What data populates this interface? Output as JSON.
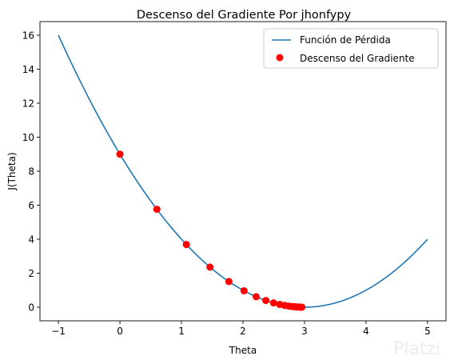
{
  "chart_data": {
    "type": "scatter",
    "title": "Descenso del Gradiente Por jhonfypy",
    "xlabel": "Theta",
    "ylabel": "J(Theta)",
    "xlim": [
      -1.3,
      5.3
    ],
    "ylim": [
      -0.8,
      16.8
    ],
    "xticks": [
      -1,
      0,
      1,
      2,
      3,
      4,
      5
    ],
    "yticks": [
      0,
      2,
      4,
      6,
      8,
      10,
      12,
      14,
      16
    ],
    "xtick_labels": [
      "−1",
      "0",
      "1",
      "2",
      "3",
      "4",
      "5"
    ],
    "ytick_labels": [
      "0",
      "2",
      "4",
      "6",
      "8",
      "10",
      "12",
      "14",
      "16"
    ],
    "grid": false,
    "legend_position": "top-right",
    "line_series": {
      "name": "Función de Pérdida",
      "color": "#1f77b4",
      "function": "(theta - 3)^2",
      "x_range": [
        -1,
        5
      ]
    },
    "scatter_series": {
      "name": "Descenso del Gradiente",
      "color": "#ff0000",
      "x": [
        0.0,
        0.6,
        1.08,
        1.464,
        1.771,
        2.017,
        2.214,
        2.371,
        2.497,
        2.597,
        2.678,
        2.742,
        2.794,
        2.835,
        2.868,
        2.894,
        2.915,
        2.932,
        2.946,
        2.957
      ],
      "y": [
        9.0,
        5.76,
        3.686,
        2.359,
        1.51,
        0.966,
        0.618,
        0.396,
        0.253,
        0.162,
        0.104,
        0.066,
        0.042,
        0.027,
        0.017,
        0.011,
        0.007,
        0.005,
        0.003,
        0.002
      ]
    }
  },
  "watermark": "Platzi"
}
